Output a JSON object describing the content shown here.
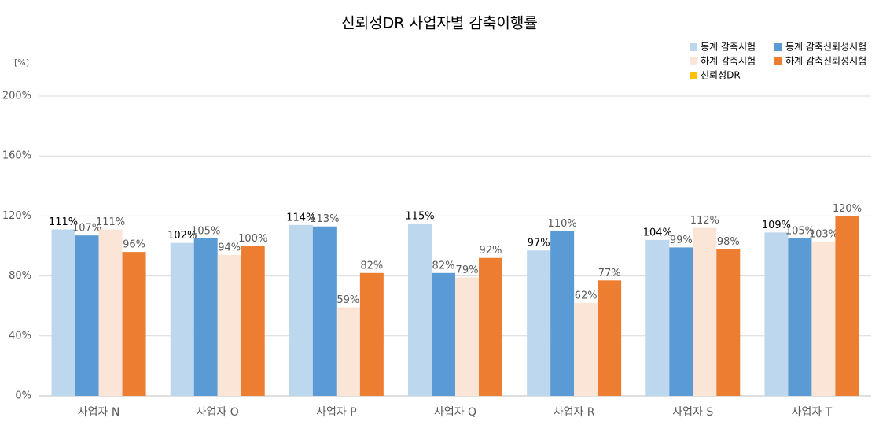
{
  "chart_data": {
    "type": "bar",
    "title": "신뢰성DR 사업자별 감축이행률",
    "y_label": "[%]",
    "categories": [
      "사업자 N",
      "사업자 O",
      "사업자 P",
      "사업자 Q",
      "사업자 R",
      "사업자 S",
      "사업자 T"
    ],
    "series": [
      {
        "name": "동계 감축시험",
        "color": "#bdd7ee",
        "values": [
          111,
          102,
          114,
          115,
          97,
          104,
          109
        ],
        "value_labels": [
          "111%",
          "102%",
          "114%",
          "115%",
          "97%",
          "104%",
          "109%"
        ]
      },
      {
        "name": "동계 감축신뢰성시험",
        "color": "#5b9bd5",
        "values": [
          107,
          105,
          113,
          82,
          110,
          99,
          105
        ],
        "value_labels": [
          "107%",
          "105%",
          "113%",
          "82%",
          "110%",
          "99%",
          "105%"
        ]
      },
      {
        "name": "하계 감축시험",
        "color": "#fbe5d6",
        "values": [
          111,
          94,
          59,
          79,
          62,
          112,
          103
        ],
        "value_labels": [
          "111%",
          "94%",
          "59%",
          "79%",
          "62%",
          "112%",
          "103%"
        ]
      },
      {
        "name": "하계 감축신뢰성시험",
        "color": "#ed7d31",
        "values": [
          96,
          100,
          82,
          92,
          77,
          98,
          120
        ],
        "value_labels": [
          "96%",
          "100%",
          "82%",
          "92%",
          "77%",
          "98%",
          "120%"
        ]
      },
      {
        "name": "신뢰성DR",
        "color": "#ffc000",
        "values": [
          null,
          null,
          null,
          null,
          null,
          null,
          null
        ]
      }
    ],
    "ylim": [
      0,
      200
    ],
    "yticks": [
      {
        "value": 0,
        "label": "0%"
      },
      {
        "value": 40,
        "label": "40%"
      },
      {
        "value": 80,
        "label": "80%"
      },
      {
        "value": 120,
        "label": "120%"
      },
      {
        "value": 160,
        "label": "160%"
      },
      {
        "value": 200,
        "label": "200%"
      }
    ],
    "grid": true,
    "legend": "top-right"
  }
}
